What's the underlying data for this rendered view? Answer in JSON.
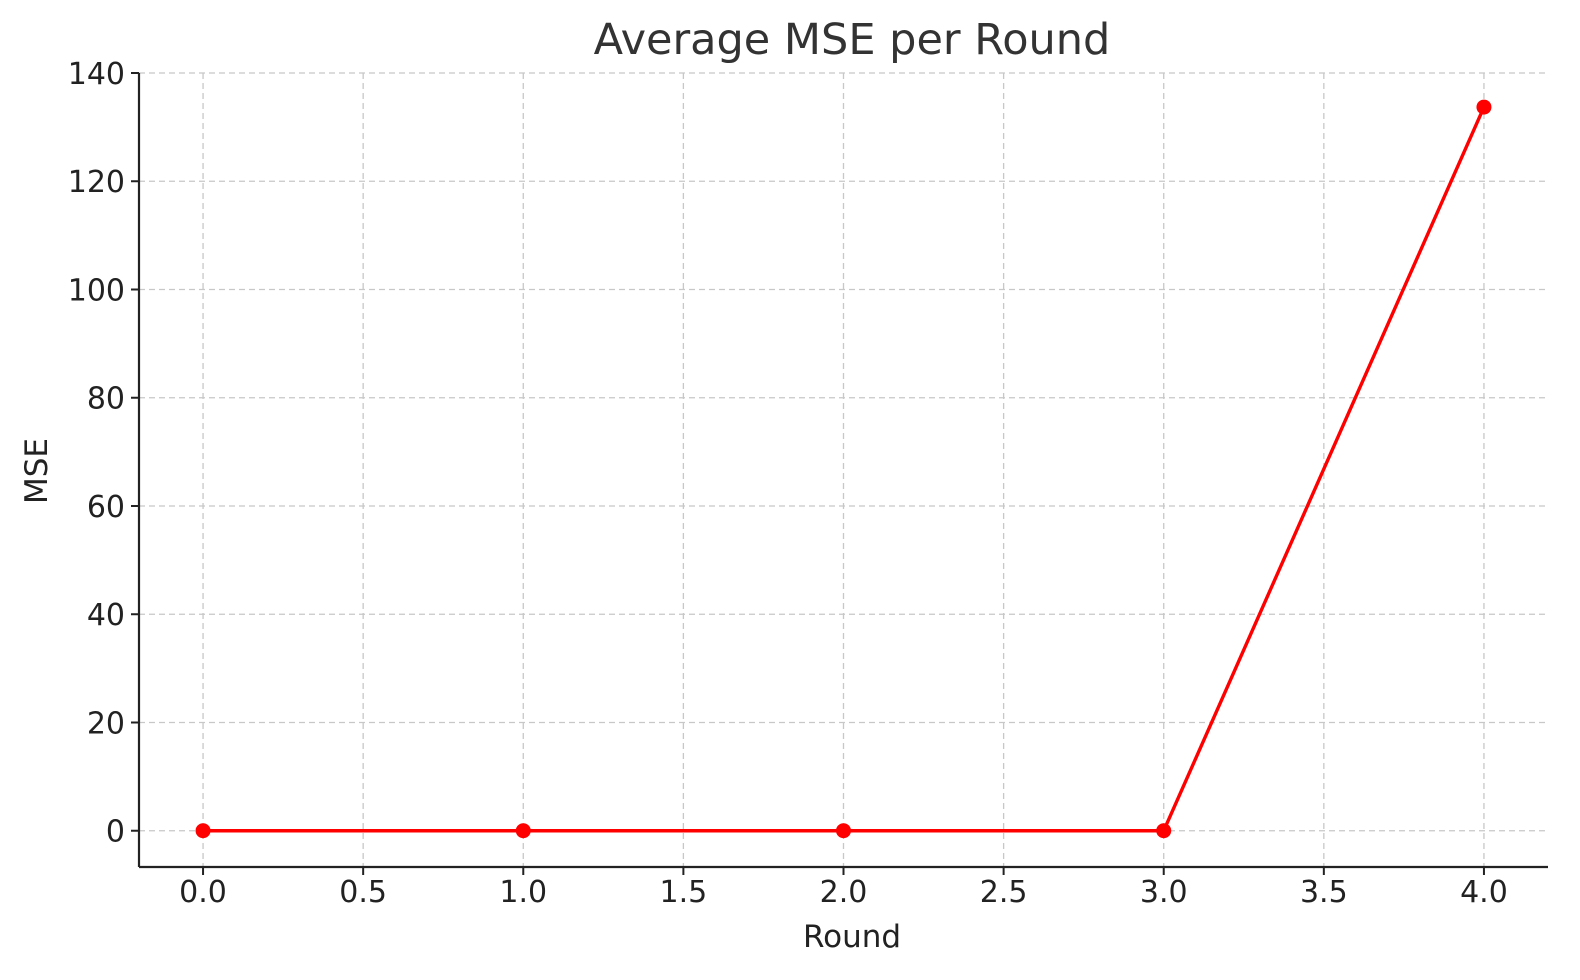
{
  "chart_data": {
    "type": "line",
    "title": "Average MSE per Round",
    "xlabel": "Round",
    "ylabel": "MSE",
    "xlim": [
      -0.2,
      4.2
    ],
    "ylim": [
      -6.7,
      140
    ],
    "xticks": [
      0.0,
      0.5,
      1.0,
      1.5,
      2.0,
      2.5,
      3.0,
      3.5,
      4.0
    ],
    "xtick_labels": [
      "0.0",
      "0.5",
      "1.0",
      "1.5",
      "2.0",
      "2.5",
      "3.0",
      "3.5",
      "4.0"
    ],
    "yticks": [
      0,
      20,
      40,
      60,
      80,
      100,
      120,
      140
    ],
    "ytick_labels": [
      "0",
      "20",
      "40",
      "60",
      "80",
      "100",
      "120",
      "140"
    ],
    "grid": true,
    "series": [
      {
        "x": [
          0,
          1,
          2,
          3,
          4
        ],
        "values": [
          0,
          0,
          0,
          0,
          133.7
        ],
        "color": "#ff0000",
        "marker": "circle"
      }
    ]
  }
}
